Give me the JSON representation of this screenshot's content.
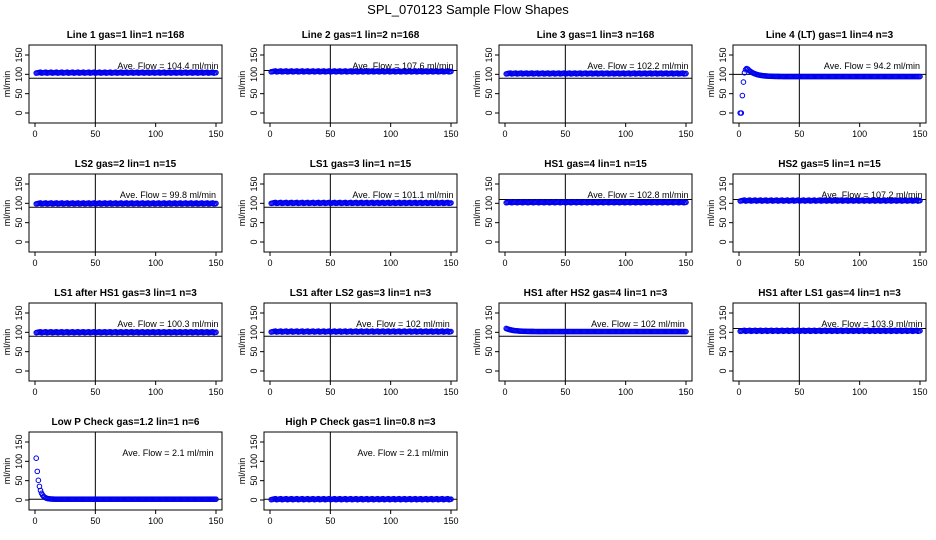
{
  "title": "SPL_070123  Sample Flow Shapes",
  "colors": {
    "points": "#0000ee",
    "axis": "#000000"
  },
  "chart_data": [
    {
      "type": "scatter",
      "title": "Line 1 gas=1 lin=1 n=168",
      "ylabel": "ml/min",
      "annotation": "Ave. Flow =  104.4  ml/min",
      "xlim": [
        0,
        150
      ],
      "ylim": [
        0,
        150
      ],
      "xticks": [
        0,
        50,
        100,
        150
      ],
      "yticks": [
        0,
        50,
        100,
        150
      ],
      "vline": 50,
      "hline": 90,
      "level": 104.4,
      "shape": "flat"
    },
    {
      "type": "scatter",
      "title": "Line 2 gas=1 lin=2 n=168",
      "ylabel": "ml/min",
      "annotation": "Ave. Flow =  107.6  ml/min",
      "xlim": [
        0,
        150
      ],
      "ylim": [
        0,
        150
      ],
      "xticks": [
        0,
        50,
        100,
        150
      ],
      "yticks": [
        0,
        50,
        100,
        150
      ],
      "vline": 50,
      "hline": 110,
      "level": 107.6,
      "shape": "flat"
    },
    {
      "type": "scatter",
      "title": "Line 3 gas=1 lin=3 n=168",
      "ylabel": "ml/min",
      "annotation": "Ave. Flow =  102.2  ml/min",
      "xlim": [
        0,
        150
      ],
      "ylim": [
        0,
        150
      ],
      "xticks": [
        0,
        50,
        100,
        150
      ],
      "yticks": [
        0,
        50,
        100,
        150
      ],
      "vline": 50,
      "hline": 90,
      "level": 102.2,
      "shape": "flat"
    },
    {
      "type": "scatter",
      "title": "Line 4 (LT) gas=1 lin=4 n=3",
      "ylabel": "ml/min",
      "annotation": "Ave. Flow =  94.2  ml/min",
      "xlim": [
        0,
        150
      ],
      "ylim": [
        0,
        150
      ],
      "xticks": [
        0,
        50,
        100,
        150
      ],
      "yticks": [
        0,
        50,
        100,
        150
      ],
      "vline": 50,
      "hline": 100,
      "level": 94.2,
      "shape": "rise"
    },
    {
      "type": "scatter",
      "title": "LS2 gas=2 lin=1 n=15",
      "ylabel": "ml/min",
      "annotation": "Ave. Flow =  99.8  ml/min",
      "xlim": [
        0,
        150
      ],
      "ylim": [
        0,
        150
      ],
      "xticks": [
        0,
        50,
        100,
        150
      ],
      "yticks": [
        0,
        50,
        100,
        150
      ],
      "vline": 50,
      "hline": 90,
      "level": 99.8,
      "shape": "flat"
    },
    {
      "type": "scatter",
      "title": "LS1 gas=3 lin=1 n=15",
      "ylabel": "ml/min",
      "annotation": "Ave. Flow =  101.1  ml/min",
      "xlim": [
        0,
        150
      ],
      "ylim": [
        0,
        150
      ],
      "xticks": [
        0,
        50,
        100,
        150
      ],
      "yticks": [
        0,
        50,
        100,
        150
      ],
      "vline": 50,
      "hline": 90,
      "level": 101.1,
      "shape": "flat"
    },
    {
      "type": "scatter",
      "title": "HS1 gas=4 lin=1 n=15",
      "ylabel": "ml/min",
      "annotation": "Ave. Flow =  102.8  ml/min",
      "xlim": [
        0,
        150
      ],
      "ylim": [
        0,
        150
      ],
      "xticks": [
        0,
        50,
        100,
        150
      ],
      "yticks": [
        0,
        50,
        100,
        150
      ],
      "vline": 50,
      "hline": 110,
      "level": 102.8,
      "shape": "flat"
    },
    {
      "type": "scatter",
      "title": "HS2 gas=5 lin=1 n=15",
      "ylabel": "ml/min",
      "annotation": "Ave. Flow =  107.2  ml/min",
      "xlim": [
        0,
        150
      ],
      "ylim": [
        0,
        150
      ],
      "xticks": [
        0,
        50,
        100,
        150
      ],
      "yticks": [
        0,
        50,
        100,
        150
      ],
      "vline": 50,
      "hline": 110,
      "level": 107.2,
      "shape": "flat"
    },
    {
      "type": "scatter",
      "title": "LS1 after HS1 gas=3 lin=1 n=3",
      "ylabel": "ml/min",
      "annotation": "Ave. Flow =  100.3  ml/min",
      "xlim": [
        0,
        150
      ],
      "ylim": [
        0,
        150
      ],
      "xticks": [
        0,
        50,
        100,
        150
      ],
      "yticks": [
        0,
        50,
        100,
        150
      ],
      "vline": 50,
      "hline": 90,
      "level": 100.3,
      "shape": "flat"
    },
    {
      "type": "scatter",
      "title": "LS1 after LS2 gas=3 lin=1 n=3",
      "ylabel": "ml/min",
      "annotation": "Ave. Flow =  102  ml/min",
      "xlim": [
        0,
        150
      ],
      "ylim": [
        0,
        150
      ],
      "xticks": [
        0,
        50,
        100,
        150
      ],
      "yticks": [
        0,
        50,
        100,
        150
      ],
      "vline": 50,
      "hline": 90,
      "level": 102.0,
      "shape": "flat"
    },
    {
      "type": "scatter",
      "title": "HS1 after HS2 gas=4 lin=1 n=3",
      "ylabel": "ml/min",
      "annotation": "Ave. Flow =  102  ml/min",
      "xlim": [
        0,
        150
      ],
      "ylim": [
        0,
        150
      ],
      "xticks": [
        0,
        50,
        100,
        150
      ],
      "yticks": [
        0,
        50,
        100,
        150
      ],
      "vline": 50,
      "hline": 90,
      "level": 102.0,
      "shape": "fall"
    },
    {
      "type": "scatter",
      "title": "HS1 after LS1 gas=4 lin=1 n=3",
      "ylabel": "ml/min",
      "annotation": "Ave. Flow =  103.9  ml/min",
      "xlim": [
        0,
        150
      ],
      "ylim": [
        0,
        150
      ],
      "xticks": [
        0,
        50,
        100,
        150
      ],
      "yticks": [
        0,
        50,
        100,
        150
      ],
      "vline": 50,
      "hline": 110,
      "level": 103.9,
      "shape": "flat"
    },
    {
      "type": "scatter",
      "title": "Low P Check gas=1.2 lin=1 n=6",
      "ylabel": "ml/min",
      "annotation": "Ave. Flow =  2.1  ml/min",
      "xlim": [
        0,
        150
      ],
      "ylim": [
        0,
        150
      ],
      "xticks": [
        0,
        50,
        100,
        150
      ],
      "yticks": [
        0,
        50,
        100,
        150
      ],
      "vline": 50,
      "hline": 2.1,
      "level": 2.1,
      "shape": "decay"
    },
    {
      "type": "scatter",
      "title": "High P Check gas=1 lin=0.8 n=3",
      "ylabel": "ml/min",
      "annotation": "Ave. Flow =  2.1  ml/min",
      "xlim": [
        0,
        150
      ],
      "ylim": [
        0,
        150
      ],
      "xticks": [
        0,
        50,
        100,
        150
      ],
      "yticks": [
        0,
        50,
        100,
        150
      ],
      "vline": 50,
      "hline": 2.1,
      "level": 2.1,
      "shape": "flat"
    }
  ]
}
